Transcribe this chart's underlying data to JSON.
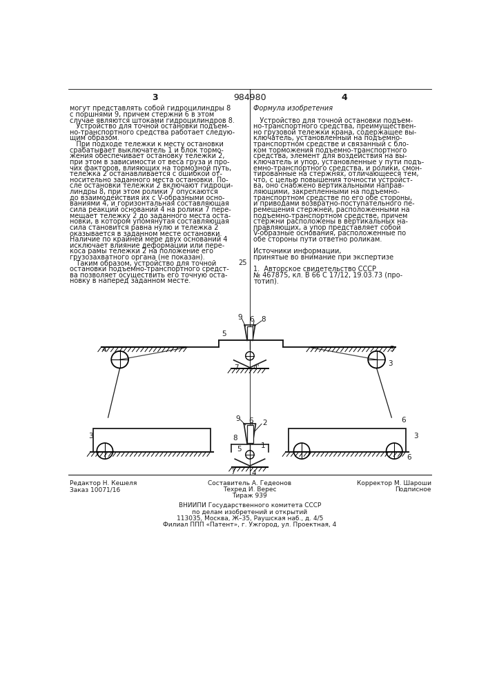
{
  "page_number_left": "3",
  "page_number_center": "984980",
  "page_number_right": "4",
  "col_left_text": [
    "могут представлять собой гидроцилиндры 8",
    "с поршнями 9, причем стержни 6 в этом",
    "случае являются штоками гидроцилиндров 8.",
    "   Устройство для точной остановки подъем-",
    "но-транспортного средства работает следую-",
    "щим образом.",
    "   При подходе тележки к месту остановки",
    "срабатывает выключатель 1 и блок тормо-",
    "жения обеспечивает остановку тележки 2,",
    "при этом в зависимости от веса груза и про-",
    "чих факторов, влияющих на тормозной путь,",
    "тележка 2 останавливается с ошибкой от-",
    "носительно заданного места остановки. По-",
    "сле остановки тележки 2 включают гидроци-",
    "линдры 8, при этом ролики 7 опускаются",
    "до взаимодействия их с V-образными осно-",
    "ваниями 4, и горизонтальная составляющая",
    "сила реакций оснований 4 на ролики 7 пере-",
    "мещает тележку 2 до заданного места оста-",
    "новки, в котором упомянутая составляющая",
    "сила становится равна нулю и тележка 2",
    "оказывается в заданном месте остановки.",
    "Наличие по крайней мере двух оснований 4",
    "исключает влияние деформации или пере-",
    "коса рамы тележки 2 на положение его",
    "грузозахватного органа (не показан).",
    "   Таким образом, устройство для точной",
    "остановки подъемно-транспортного средст-",
    "ва позволяет осуществить его точную оста-",
    "новку в наперед заданном месте."
  ],
  "col_right_text_items": [
    {
      "text": "Формула изобретения",
      "italic": true
    },
    {
      "text": "",
      "italic": false
    },
    {
      "text": "   Устройство для точной остановки подъем-",
      "italic": false
    },
    {
      "text": "но-транспортного средства, преимуществен-",
      "italic": false
    },
    {
      "text": "но грузовой тележки крана, содержащее вы-",
      "italic": false
    },
    {
      "text": "ключатель, установленный на подъемно-",
      "italic": false
    },
    {
      "text": "транспортном средстве и связанный с бло-",
      "italic": false
    },
    {
      "text": "ком торможения подъемно-транспортного",
      "italic": false
    },
    {
      "text": "средства, элемент для воздействия на вы-",
      "italic": false
    },
    {
      "text": "ключатель и упор, установленные у пути подъ-",
      "italic": false
    },
    {
      "text": "емно-транспортного средства, и ролики, смон-",
      "italic": false
    },
    {
      "text": "тированные на стержнях, отличающееся тем,",
      "italic": false
    },
    {
      "text": "что, с целью повышения точности устройст-",
      "italic": false
    },
    {
      "text": "ва, оно снабжено вертикальными направ-",
      "italic": false
    },
    {
      "text": "ляющими, закрепленными на подъемно-",
      "italic": false
    },
    {
      "text": "транспортном средстве по его обе стороны,",
      "italic": false
    },
    {
      "text": "и приводами возвратно-поступательного пе-",
      "italic": false
    },
    {
      "text": "ремещения стержней, расположенными на",
      "italic": false
    },
    {
      "text": "подъемно-транспортном средстве, причем",
      "italic": false
    },
    {
      "text": "стержни расположены в вертикальных на-",
      "italic": false
    },
    {
      "text": "правляющих, а упор представляет собой",
      "italic": false
    },
    {
      "text": "V-образные основания, расположенные по",
      "italic": false
    },
    {
      "text": "обе стороны пути ответно роликам.",
      "italic": false
    },
    {
      "text": "",
      "italic": false
    },
    {
      "text": "Источники информации,",
      "italic": false
    },
    {
      "text": "принятые во внимание при экспертизе",
      "italic": false
    },
    {
      "text": "",
      "italic": false
    },
    {
      "text": "1.  Авторское свидетельство СССР",
      "italic": false
    },
    {
      "text": "№ 467875, кл. В 66 С 17/12, 19.03.73 (про-",
      "italic": false
    },
    {
      "text": "тотип).",
      "italic": false
    }
  ],
  "footer_left1": "Редактор Н. Кешеля",
  "footer_left2": "Заказ 10071/16",
  "footer_center1": "Составитель А. Гедеонов",
  "footer_center2": "Техред И. Верес",
  "footer_center3": "Тираж 939",
  "footer_right1": "Корректор М. Шароши",
  "footer_right2": "Подписное",
  "footer_org1": "ВНИИПИ Государственного комитета СССР",
  "footer_org2": "по делам изобретений и открытий",
  "footer_org3": "113035, Москва, Ж–35, Раушская наб., д. 4/5",
  "footer_org4": "Филиал ППП «Патент», г. Ужгород, ул. Проектная, 4",
  "background": "#ffffff",
  "text_color": "#1a1a1a",
  "line_number": "25"
}
